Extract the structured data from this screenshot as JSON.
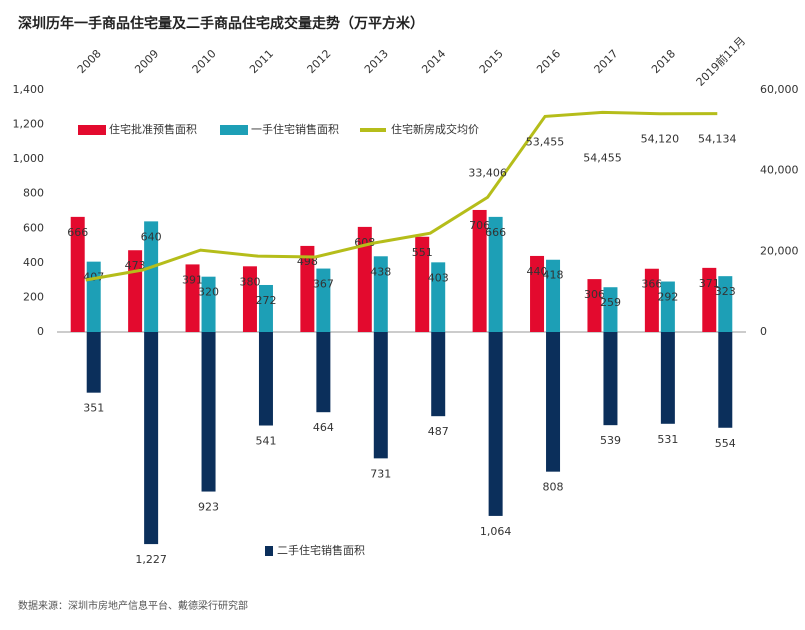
{
  "chart_data": {
    "type": "bar",
    "title": "深圳历年一手商品住宅量及二手商品住宅成交量走势（万平方米）",
    "categories": [
      "2008",
      "2009",
      "2010",
      "2011",
      "2012",
      "2013",
      "2014",
      "2015",
      "2016",
      "2017",
      "2018",
      "2019前11月"
    ],
    "series": [
      {
        "name": "住宅批准预售面积",
        "color": "#e30a2e",
        "values": [
          666,
          473,
          391,
          380,
          498,
          608,
          551,
          706,
          440,
          306,
          366,
          371
        ]
      },
      {
        "name": "一手住宅销售面积",
        "color": "#1d9fb6",
        "values": [
          407,
          640,
          320,
          272,
          367,
          438,
          403,
          666,
          418,
          259,
          292,
          323
        ]
      },
      {
        "name": "二手住宅销售面积",
        "color": "#0b2f5b",
        "direction": "down",
        "values": [
          351,
          1227,
          923,
          541,
          464,
          731,
          487,
          1064,
          808,
          539,
          531,
          554
        ],
        "value_labels": [
          "351",
          "1,227",
          "923",
          "541",
          "464",
          "731",
          "487",
          "1,064",
          "808",
          "539",
          "531",
          "554"
        ]
      },
      {
        "name": "住宅新房成交均价",
        "color": "#b5bd1a",
        "type": "line",
        "axis": "y2",
        "values": [
          12900,
          15400,
          20300,
          18800,
          18600,
          22000,
          24500,
          33406,
          53455,
          54455,
          54120,
          54134
        ],
        "value_labels": [
          null,
          null,
          null,
          null,
          null,
          null,
          null,
          "33,406",
          "53,455",
          "54,455",
          "54,120",
          "54,134"
        ]
      }
    ],
    "ylim": [
      0,
      1400
    ],
    "yticks": [
      0,
      {
        "value": 200,
        "label": "200"
      },
      {
        "value": 400,
        "label": "400"
      },
      {
        "value": 600,
        "label": "600"
      },
      {
        "value": 800,
        "label": "800"
      },
      {
        "value": 1000,
        "label": "1,000"
      },
      {
        "value": 1200,
        "label": "1,200"
      },
      {
        "value": 1400,
        "label": "1,400"
      }
    ],
    "y2lim": [
      0,
      60000
    ],
    "y2ticks": [
      0,
      {
        "value": 20000,
        "label": "20,000"
      },
      {
        "value": 40000,
        "label": "40,000"
      },
      {
        "value": 60000,
        "label": "60,000"
      }
    ],
    "source": "数据来源：深圳市房地产信息平台、戴德梁行研究部"
  }
}
